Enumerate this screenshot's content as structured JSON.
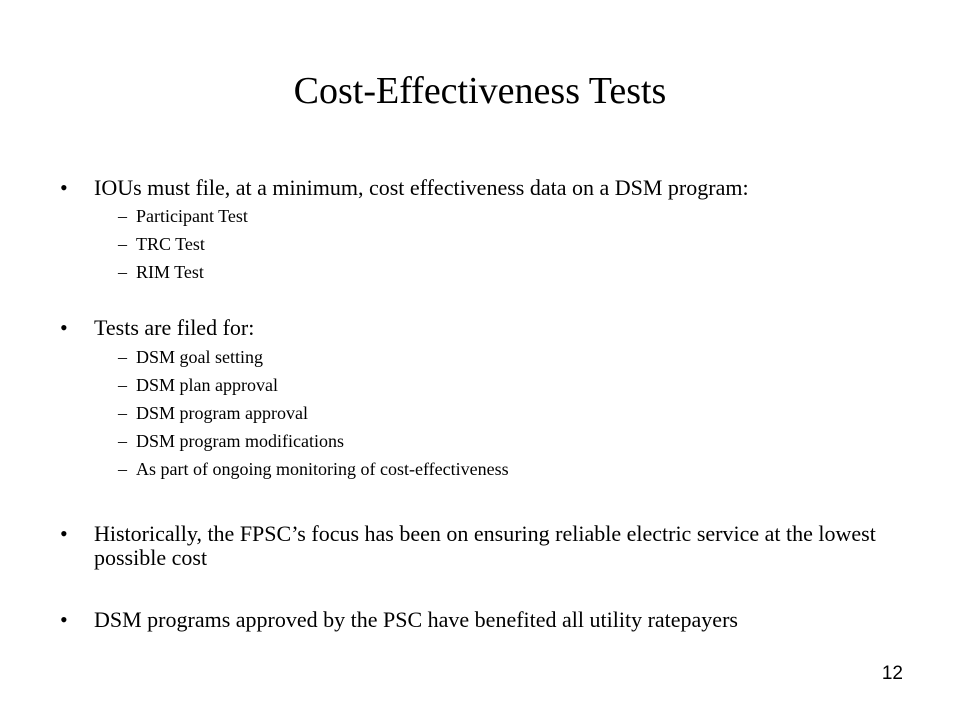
{
  "slide": {
    "title": "Cost-Effectiveness Tests",
    "page_number": "12",
    "bullet_symbol": "•",
    "dash_symbol": "–",
    "bullets": [
      {
        "text": "IOUs must file, at a minimum, cost effectiveness data on a DSM program:",
        "subitems": [
          "Participant Test",
          "TRC Test",
          "RIM Test"
        ]
      },
      {
        "text": "Tests are filed for:",
        "subitems": [
          "DSM goal setting",
          "DSM plan approval",
          "DSM program approval",
          "DSM program modifications",
          "As part of ongoing monitoring of cost-effectiveness"
        ]
      },
      {
        "text": "Historically, the FPSC’s focus has been on ensuring reliable electric service at the lowest possible cost",
        "subitems": []
      },
      {
        "text": "DSM programs approved by the PSC have benefited all utility ratepayers",
        "subitems": []
      }
    ]
  }
}
